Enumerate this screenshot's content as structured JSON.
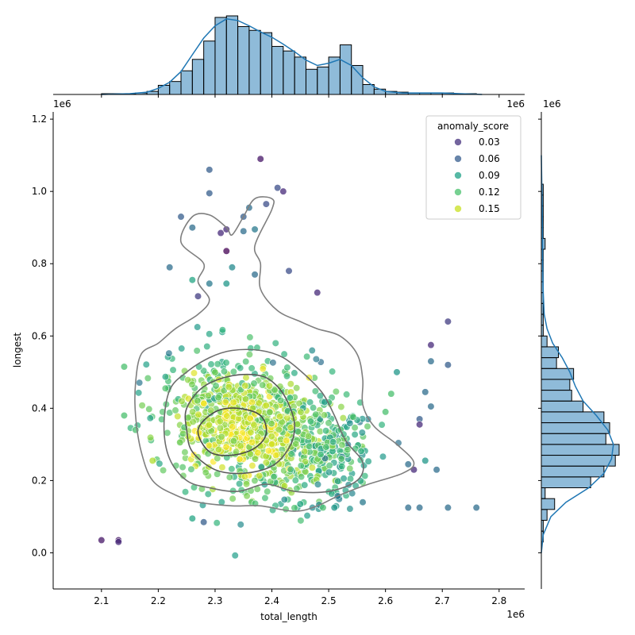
{
  "chart_data": {
    "type": "scatter",
    "xlabel": "total_length",
    "ylabel": "longest",
    "x_offset_text": "1e6",
    "y_offset_text": "1e6",
    "top_marginal_offset_text": "1e6",
    "right_marginal_offset_text": "1e6",
    "xlim": [
      2.015,
      2.845
    ],
    "ylim": [
      -0.1,
      1.22
    ],
    "x_ticks": [
      "2.1",
      "2.2",
      "2.3",
      "2.4",
      "2.5",
      "2.6",
      "2.7",
      "2.8"
    ],
    "x_tick_values": [
      2.1,
      2.2,
      2.3,
      2.4,
      2.5,
      2.6,
      2.7,
      2.8
    ],
    "y_ticks": [
      "0.0",
      "0.2",
      "0.4",
      "0.6",
      "0.8",
      "1.0",
      "1.2"
    ],
    "y_tick_values": [
      0.0,
      0.2,
      0.4,
      0.6,
      0.8,
      1.0,
      1.2
    ],
    "grid": false,
    "legend": {
      "title": "anomaly_score",
      "placement": "top-right",
      "entries": [
        {
          "label": "0.03",
          "color": "#46327e"
        },
        {
          "label": "0.06",
          "color": "#365c8d"
        },
        {
          "label": "0.09",
          "color": "#1fa187"
        },
        {
          "label": "0.12",
          "color": "#4ac16d"
        },
        {
          "label": "0.15",
          "color": "#c8e020"
        }
      ]
    },
    "colormap": "viridis",
    "score_range": [
      0.0,
      0.17
    ],
    "points": [
      {
        "x": 2.1,
        "y": 0.035,
        "s": 0.01
      },
      {
        "x": 2.13,
        "y": 0.035,
        "s": 0.01
      },
      {
        "x": 2.13,
        "y": 0.03,
        "s": 0.02
      },
      {
        "x": 2.29,
        "y": 1.06,
        "s": 0.05
      },
      {
        "x": 2.29,
        "y": 0.995,
        "s": 0.05
      },
      {
        "x": 2.24,
        "y": 0.93,
        "s": 0.05
      },
      {
        "x": 2.26,
        "y": 0.9,
        "s": 0.06
      },
      {
        "x": 2.31,
        "y": 0.885,
        "s": 0.02
      },
      {
        "x": 2.32,
        "y": 0.895,
        "s": 0.02
      },
      {
        "x": 2.38,
        "y": 1.09,
        "s": 0.01
      },
      {
        "x": 2.41,
        "y": 1.01,
        "s": 0.04
      },
      {
        "x": 2.42,
        "y": 1.0,
        "s": 0.02
      },
      {
        "x": 2.39,
        "y": 0.965,
        "s": 0.04
      },
      {
        "x": 2.36,
        "y": 0.955,
        "s": 0.06
      },
      {
        "x": 2.35,
        "y": 0.93,
        "s": 0.05
      },
      {
        "x": 2.37,
        "y": 0.895,
        "s": 0.07
      },
      {
        "x": 2.35,
        "y": 0.89,
        "s": 0.06
      },
      {
        "x": 2.32,
        "y": 0.835,
        "s": 0.0
      },
      {
        "x": 2.22,
        "y": 0.79,
        "s": 0.06
      },
      {
        "x": 2.33,
        "y": 0.79,
        "s": 0.08
      },
      {
        "x": 2.43,
        "y": 0.78,
        "s": 0.04
      },
      {
        "x": 2.37,
        "y": 0.77,
        "s": 0.06
      },
      {
        "x": 2.26,
        "y": 0.755,
        "s": 0.1
      },
      {
        "x": 2.29,
        "y": 0.745,
        "s": 0.07
      },
      {
        "x": 2.32,
        "y": 0.745,
        "s": 0.09
      },
      {
        "x": 2.48,
        "y": 0.72,
        "s": 0.02
      },
      {
        "x": 2.27,
        "y": 0.71,
        "s": 0.03
      },
      {
        "x": 2.71,
        "y": 0.64,
        "s": 0.03
      },
      {
        "x": 2.68,
        "y": 0.575,
        "s": 0.02
      },
      {
        "x": 2.68,
        "y": 0.53,
        "s": 0.06
      },
      {
        "x": 2.71,
        "y": 0.52,
        "s": 0.05
      },
      {
        "x": 2.67,
        "y": 0.445,
        "s": 0.06
      },
      {
        "x": 2.68,
        "y": 0.405,
        "s": 0.06
      },
      {
        "x": 2.66,
        "y": 0.37,
        "s": 0.05
      },
      {
        "x": 2.66,
        "y": 0.355,
        "s": 0.02
      },
      {
        "x": 2.62,
        "y": 0.5,
        "s": 0.09
      },
      {
        "x": 2.61,
        "y": 0.44,
        "s": 0.12
      },
      {
        "x": 2.6,
        "y": 0.39,
        "s": 0.12
      },
      {
        "x": 2.69,
        "y": 0.23,
        "s": 0.06
      },
      {
        "x": 2.67,
        "y": 0.255,
        "s": 0.09
      },
      {
        "x": 2.64,
        "y": 0.245,
        "s": 0.06
      },
      {
        "x": 2.65,
        "y": 0.23,
        "s": 0.02
      },
      {
        "x": 2.64,
        "y": 0.125,
        "s": 0.06
      },
      {
        "x": 2.66,
        "y": 0.125,
        "s": 0.06
      },
      {
        "x": 2.71,
        "y": 0.125,
        "s": 0.06
      },
      {
        "x": 2.76,
        "y": 0.125,
        "s": 0.06
      },
      {
        "x": 2.14,
        "y": 0.38,
        "s": 0.12
      },
      {
        "x": 2.14,
        "y": 0.515,
        "s": 0.12
      },
      {
        "x": 2.16,
        "y": 0.34,
        "s": 0.12
      },
      {
        "x": 2.19,
        "y": 0.255,
        "s": 0.15
      },
      {
        "x": 2.26,
        "y": 0.095,
        "s": 0.1
      },
      {
        "x": 2.28,
        "y": 0.085,
        "s": 0.05
      },
      {
        "x": 2.49,
        "y": 0.125,
        "s": 0.12
      },
      {
        "x": 2.51,
        "y": 0.125,
        "s": 0.09
      },
      {
        "x": 2.56,
        "y": 0.14,
        "s": 0.07
      },
      {
        "x": 2.45,
        "y": 0.135,
        "s": 0.1
      }
    ],
    "top_histogram": {
      "bin_edges": [
        2.1,
        2.12,
        2.14,
        2.16,
        2.18,
        2.2,
        2.22,
        2.24,
        2.26,
        2.28,
        2.3,
        2.32,
        2.34,
        2.36,
        2.38,
        2.4,
        2.42,
        2.44,
        2.46,
        2.48,
        2.5,
        2.52,
        2.54,
        2.56,
        2.58,
        2.6,
        2.62,
        2.64,
        2.66,
        2.68,
        2.7,
        2.72,
        2.74,
        2.76
      ],
      "counts": [
        1,
        1,
        1,
        2,
        4,
        12,
        17,
        31,
        46,
        70,
        101,
        103,
        89,
        84,
        81,
        63,
        57,
        49,
        33,
        36,
        49,
        65,
        38,
        13,
        7,
        4,
        3,
        2,
        2,
        2,
        2,
        1,
        1
      ],
      "kde": [
        [
          2.1,
          0
        ],
        [
          2.15,
          1
        ],
        [
          2.18,
          3
        ],
        [
          2.2,
          8
        ],
        [
          2.22,
          16
        ],
        [
          2.24,
          30
        ],
        [
          2.26,
          52
        ],
        [
          2.28,
          74
        ],
        [
          2.3,
          90
        ],
        [
          2.32,
          99
        ],
        [
          2.34,
          97
        ],
        [
          2.36,
          90
        ],
        [
          2.38,
          82
        ],
        [
          2.4,
          75
        ],
        [
          2.42,
          66
        ],
        [
          2.44,
          56
        ],
        [
          2.46,
          45
        ],
        [
          2.48,
          38
        ],
        [
          2.5,
          41
        ],
        [
          2.52,
          46
        ],
        [
          2.54,
          38
        ],
        [
          2.56,
          22
        ],
        [
          2.58,
          10
        ],
        [
          2.6,
          4
        ],
        [
          2.63,
          2
        ],
        [
          2.66,
          2
        ],
        [
          2.7,
          2
        ],
        [
          2.73,
          1
        ],
        [
          2.77,
          0
        ]
      ]
    },
    "right_histogram": {
      "bin_edges": [
        0.03,
        0.06,
        0.09,
        0.12,
        0.15,
        0.18,
        0.21,
        0.24,
        0.27,
        0.3,
        0.33,
        0.36,
        0.39,
        0.42,
        0.45,
        0.48,
        0.51,
        0.54,
        0.57,
        0.6,
        0.63,
        0.66,
        0.69,
        0.72,
        0.75,
        0.78,
        0.81,
        0.84,
        0.87,
        0.9,
        0.93,
        0.96,
        0.99,
        1.02
      ],
      "counts": [
        1,
        1,
        3,
        7,
        2,
        26,
        33,
        39,
        41,
        34,
        36,
        33,
        22,
        16,
        15,
        17,
        8,
        9,
        3,
        1,
        1,
        1,
        1,
        1,
        1,
        1,
        1,
        2,
        1,
        1,
        1,
        1,
        1
      ],
      "kde": [
        [
          0.0,
          0
        ],
        [
          0.05,
          1
        ],
        [
          0.1,
          5
        ],
        [
          0.14,
          13
        ],
        [
          0.18,
          25
        ],
        [
          0.22,
          33
        ],
        [
          0.26,
          37
        ],
        [
          0.3,
          38
        ],
        [
          0.34,
          35
        ],
        [
          0.38,
          29
        ],
        [
          0.42,
          22
        ],
        [
          0.46,
          18
        ],
        [
          0.5,
          15
        ],
        [
          0.54,
          11
        ],
        [
          0.58,
          6
        ],
        [
          0.62,
          3
        ],
        [
          0.66,
          1.5
        ],
        [
          0.72,
          1
        ],
        [
          0.8,
          0.7
        ],
        [
          0.9,
          0.6
        ],
        [
          1.0,
          0.3
        ],
        [
          1.1,
          0
        ]
      ]
    },
    "kde_contours": [
      [
        [
          2.17,
          0.55
        ],
        [
          2.2,
          0.58
        ],
        [
          2.23,
          0.62
        ],
        [
          2.27,
          0.66
        ],
        [
          2.29,
          0.7
        ],
        [
          2.27,
          0.75
        ],
        [
          2.28,
          0.8
        ],
        [
          2.24,
          0.86
        ],
        [
          2.26,
          0.93
        ],
        [
          2.29,
          0.935
        ],
        [
          2.32,
          0.9
        ],
        [
          2.33,
          0.88
        ],
        [
          2.35,
          0.93
        ],
        [
          2.37,
          0.98
        ],
        [
          2.4,
          0.98
        ],
        [
          2.4,
          0.95
        ],
        [
          2.37,
          0.85
        ],
        [
          2.38,
          0.8
        ],
        [
          2.38,
          0.73
        ],
        [
          2.41,
          0.67
        ],
        [
          2.45,
          0.64
        ],
        [
          2.48,
          0.62
        ],
        [
          2.52,
          0.6
        ],
        [
          2.55,
          0.55
        ],
        [
          2.56,
          0.48
        ],
        [
          2.56,
          0.41
        ],
        [
          2.58,
          0.35
        ],
        [
          2.62,
          0.3
        ],
        [
          2.65,
          0.25
        ],
        [
          2.63,
          0.22
        ],
        [
          2.57,
          0.19
        ],
        [
          2.52,
          0.16
        ],
        [
          2.48,
          0.13
        ],
        [
          2.44,
          0.115
        ],
        [
          2.38,
          0.13
        ],
        [
          2.33,
          0.13
        ],
        [
          2.27,
          0.14
        ],
        [
          2.23,
          0.16
        ],
        [
          2.19,
          0.2
        ],
        [
          2.17,
          0.28
        ],
        [
          2.16,
          0.38
        ],
        [
          2.16,
          0.47
        ],
        [
          2.17,
          0.55
        ]
      ],
      [
        [
          2.22,
          0.45
        ],
        [
          2.25,
          0.5
        ],
        [
          2.29,
          0.54
        ],
        [
          2.33,
          0.56
        ],
        [
          2.38,
          0.56
        ],
        [
          2.42,
          0.54
        ],
        [
          2.46,
          0.49
        ],
        [
          2.49,
          0.44
        ],
        [
          2.51,
          0.38
        ],
        [
          2.53,
          0.31
        ],
        [
          2.56,
          0.25
        ],
        [
          2.55,
          0.2
        ],
        [
          2.5,
          0.17
        ],
        [
          2.44,
          0.17
        ],
        [
          2.39,
          0.19
        ],
        [
          2.34,
          0.17
        ],
        [
          2.29,
          0.18
        ],
        [
          2.25,
          0.2
        ],
        [
          2.22,
          0.26
        ],
        [
          2.21,
          0.35
        ],
        [
          2.22,
          0.45
        ]
      ],
      [
        [
          2.25,
          0.4
        ],
        [
          2.28,
          0.46
        ],
        [
          2.33,
          0.49
        ],
        [
          2.38,
          0.49
        ],
        [
          2.41,
          0.46
        ],
        [
          2.43,
          0.41
        ],
        [
          2.44,
          0.35
        ],
        [
          2.43,
          0.29
        ],
        [
          2.4,
          0.24
        ],
        [
          2.35,
          0.22
        ],
        [
          2.3,
          0.23
        ],
        [
          2.26,
          0.28
        ],
        [
          2.25,
          0.34
        ],
        [
          2.25,
          0.4
        ]
      ],
      [
        [
          2.27,
          0.34
        ],
        [
          2.3,
          0.39
        ],
        [
          2.34,
          0.4
        ],
        [
          2.38,
          0.38
        ],
        [
          2.39,
          0.33
        ],
        [
          2.37,
          0.29
        ],
        [
          2.33,
          0.27
        ],
        [
          2.29,
          0.28
        ],
        [
          2.27,
          0.34
        ]
      ]
    ]
  }
}
